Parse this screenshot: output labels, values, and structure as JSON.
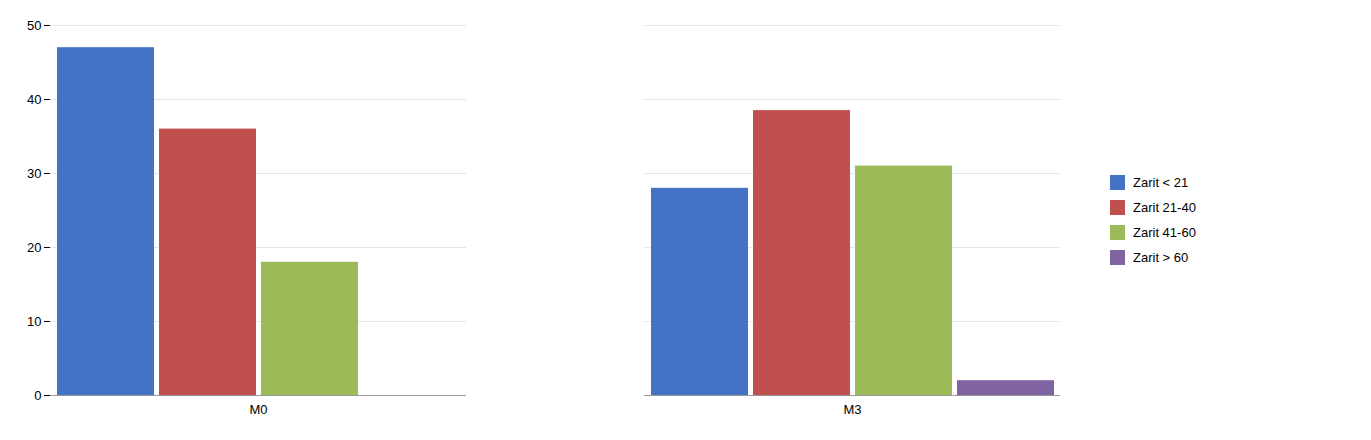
{
  "chart_data": {
    "type": "bar",
    "categories": [
      "M0",
      "M3"
    ],
    "series": [
      {
        "name": "Zarit < 21",
        "color": "#4472C4",
        "values": [
          47,
          28
        ]
      },
      {
        "name": "Zarit 21-40",
        "color": "#C0504D",
        "values": [
          36,
          38.5
        ]
      },
      {
        "name": "Zarit 41-60",
        "color": "#9BBB59",
        "values": [
          18,
          31
        ]
      },
      {
        "name": "Zarit > 60",
        "color": "#8064A2",
        "values": [
          0,
          2
        ]
      }
    ],
    "ylim": [
      0,
      50
    ],
    "yticks": [
      0,
      10,
      20,
      30,
      40,
      50
    ],
    "grid": true,
    "legend": "right"
  }
}
